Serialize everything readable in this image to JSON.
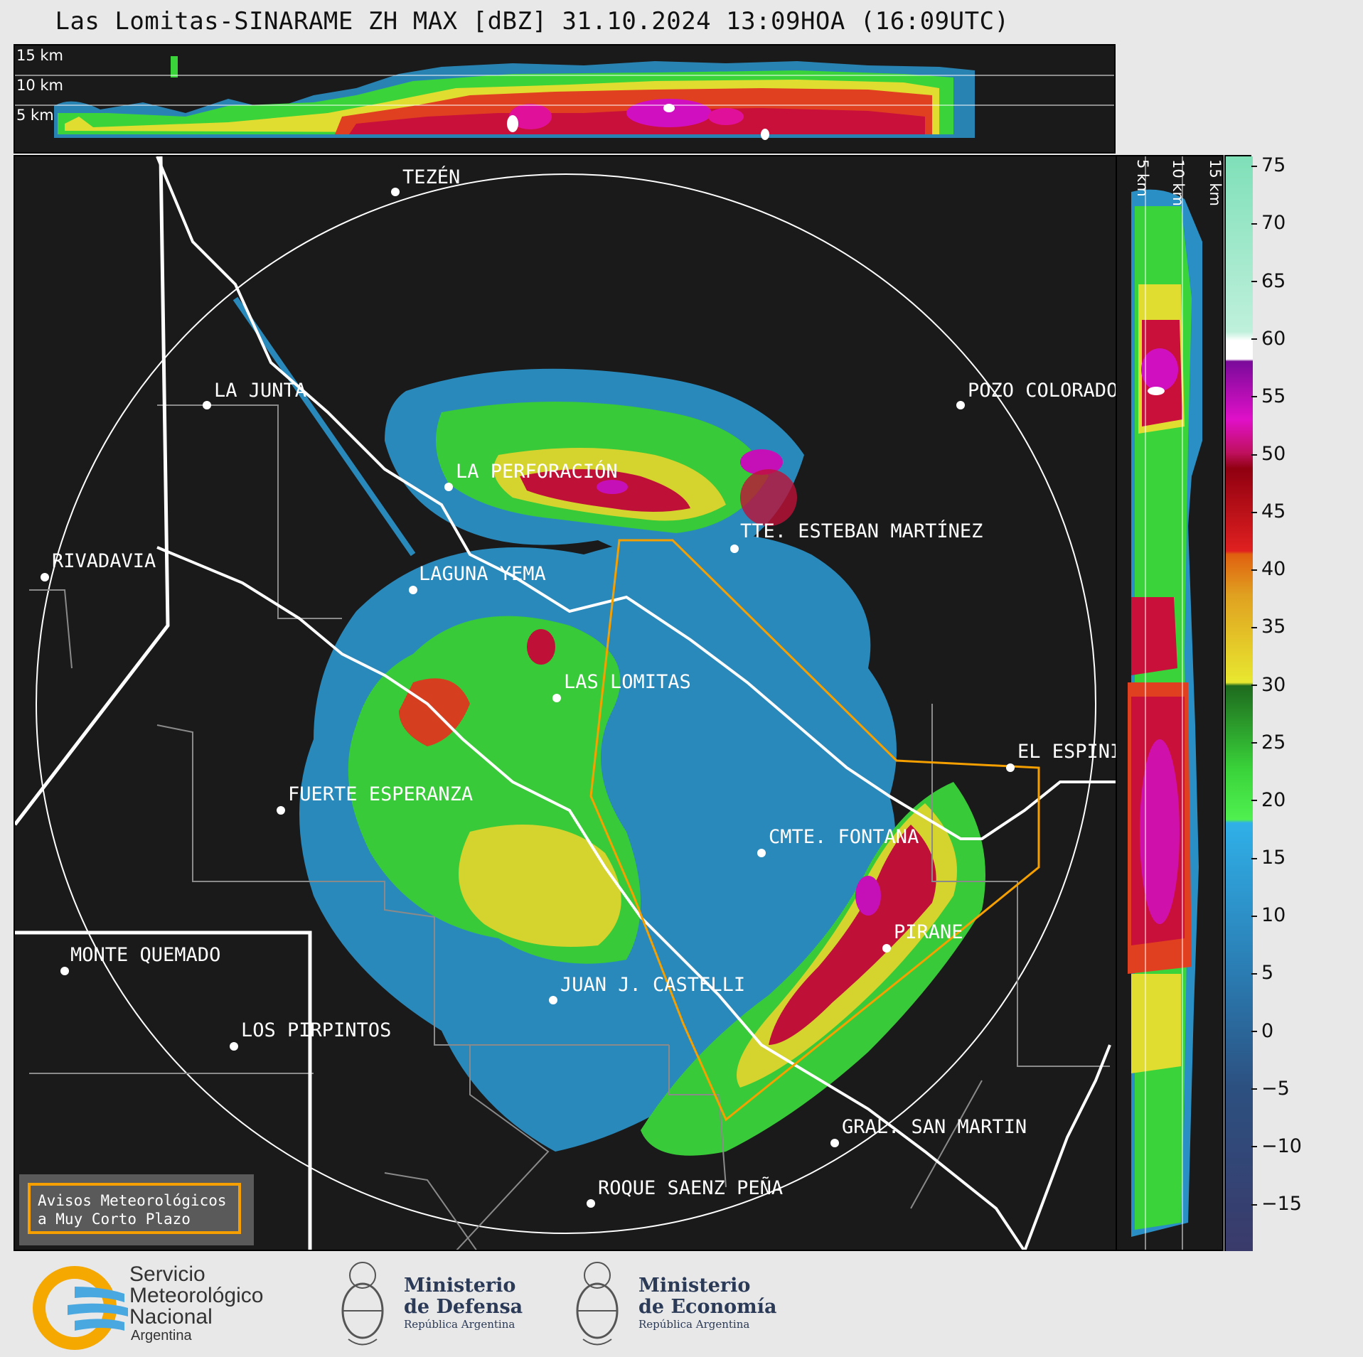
{
  "title": "Las Lomitas-SINARAME ZH MAX [dBZ] 31.10.2024 13:09HOA (16:09UTC)",
  "top_panel": {
    "height_labels": [
      "15 km",
      "10 km",
      "5 km"
    ]
  },
  "right_panel": {
    "height_labels": [
      "5 km",
      "10 km",
      "15 km"
    ]
  },
  "colorbar": {
    "unit": "dBZ",
    "range": [
      -19,
      76
    ],
    "ticks": [
      "75",
      "70",
      "65",
      "60",
      "55",
      "50",
      "45",
      "40",
      "35",
      "30",
      "25",
      "20",
      "15",
      "10",
      "5",
      "0",
      "−5",
      "−10",
      "−15"
    ],
    "stops": [
      {
        "from": -19,
        "to": 18,
        "palette": "blues"
      },
      {
        "from": 18,
        "to": 30,
        "palette": "greens"
      },
      {
        "from": 30,
        "to": 42,
        "palette": "yellow-orange"
      },
      {
        "from": 42,
        "to": 50,
        "palette": "reds"
      },
      {
        "from": 50,
        "to": 58,
        "palette": "magentas"
      },
      {
        "from": 58,
        "to": 60,
        "palette": "white"
      },
      {
        "from": 60,
        "to": 76,
        "palette": "mint"
      }
    ]
  },
  "map": {
    "radar_site": "LAS LOMITAS",
    "places": [
      {
        "name": "TEZÉN"
      },
      {
        "name": "LA JUNTA"
      },
      {
        "name": "POZO COLORADO"
      },
      {
        "name": "LA PERFORACIÓN"
      },
      {
        "name": "TTE. ESTEBAN MARTÍNEZ"
      },
      {
        "name": "RIVADAVIA"
      },
      {
        "name": "LAGUNA YEMA"
      },
      {
        "name": "LAS LOMITAS"
      },
      {
        "name": "EL ESPINILLO"
      },
      {
        "name": "FUERTE ESPERANZA"
      },
      {
        "name": "CMTE. FONTANA"
      },
      {
        "name": "PIRANE"
      },
      {
        "name": "MONTE QUEMADO"
      },
      {
        "name": "JUAN J. CASTELLI"
      },
      {
        "name": "LOS PIRPINTOS"
      },
      {
        "name": "GRAL. SAN MARTIN"
      },
      {
        "name": "ROQUE SAENZ PEÑA"
      }
    ],
    "colors": {
      "background": "#1a1a1a",
      "warning_polygon": "#f5a000",
      "range_ring": "#ffffff",
      "rivers": "#ffffff",
      "borders": "#8a8a8a"
    }
  },
  "warning_box": {
    "line1": "Avisos Meteorológicos",
    "line2": "a Muy Corto Plazo"
  },
  "footer": {
    "smn": {
      "line1": "Servicio",
      "line2": "Meteorológico",
      "line3": "Nacional",
      "line4": "Argentina"
    },
    "defensa": {
      "line1": "Ministerio",
      "line2": "de Defensa",
      "line3": "República Argentina"
    },
    "economia": {
      "line1": "Ministerio",
      "line2": "de Economía",
      "line3": "República Argentina"
    }
  }
}
